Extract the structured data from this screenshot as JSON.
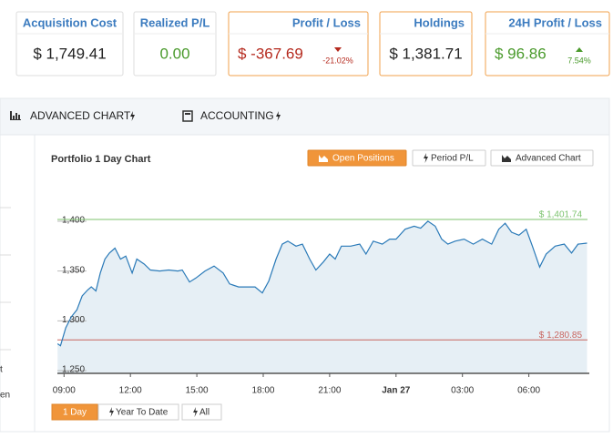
{
  "cards": [
    {
      "label": "Acquisition Cost",
      "value": "$ 1,749.41"
    },
    {
      "label": "Realized P/L",
      "value": "0.00"
    },
    {
      "label": "Profit / Loss",
      "value": "$ -367.69",
      "change": "-21.02%"
    },
    {
      "label": "Holdings",
      "value": "$ 1,381.71"
    },
    {
      "label": "24H Profit / Loss",
      "value": "$ 96.86",
      "change": "7.54%"
    }
  ],
  "tabs": [
    "ADVANCED CHART",
    "ACCOUNTING"
  ],
  "sidebar": [
    "t",
    "en"
  ],
  "chart_buttons": [
    "Open Positions",
    "Period P/L",
    "Advanced Chart"
  ],
  "range_buttons": [
    "1 Day",
    "Year To Date",
    "All"
  ],
  "chart_data": {
    "type": "area",
    "title": "Portfolio 1 Day Chart",
    "color": "#2a7ab8",
    "fill": "#e6eff5",
    "x": [
      8.71,
      8.84,
      9.08,
      9.33,
      9.58,
      9.82,
      10.07,
      10.23,
      10.44,
      10.64,
      10.85,
      11.05,
      11.3,
      11.55,
      11.79,
      12.08,
      12.29,
      12.62,
      12.9,
      13.32,
      13.73,
      14.14,
      14.34,
      14.67,
      14.96,
      15.37,
      15.78,
      16.19,
      16.48,
      16.89,
      17.3,
      17.63,
      17.96,
      18.25,
      18.58,
      18.86,
      19.11,
      19.48,
      19.77,
      20.1,
      20.38,
      20.71,
      21.0,
      21.25,
      21.53,
      21.95,
      22.36,
      22.64,
      22.97,
      23.38,
      23.71,
      24.0,
      24.41,
      24.82,
      25.11,
      25.44,
      25.77,
      26.06,
      26.34,
      26.67,
      27.08,
      27.49,
      27.9,
      28.32,
      28.64,
      28.93,
      29.22,
      29.55,
      29.88,
      30.16,
      30.49,
      30.78,
      31.19,
      31.6,
      31.93,
      32.22,
      32.63
    ],
    "values": [
      1277,
      1275,
      1293,
      1304,
      1311,
      1325,
      1331,
      1334,
      1330,
      1348,
      1362,
      1368,
      1373,
      1362,
      1365,
      1348,
      1362,
      1357,
      1351,
      1350,
      1351,
      1350,
      1351,
      1339,
      1343,
      1350,
      1355,
      1348,
      1337,
      1334,
      1334,
      1334,
      1328,
      1340,
      1362,
      1377,
      1380,
      1375,
      1377,
      1362,
      1351,
      1359,
      1367,
      1362,
      1375,
      1375,
      1377,
      1367,
      1380,
      1377,
      1382,
      1382,
      1392,
      1395,
      1393,
      1400,
      1395,
      1382,
      1377,
      1380,
      1382,
      1377,
      1382,
      1377,
      1392,
      1398,
      1389,
      1386,
      1392,
      1375,
      1354,
      1367,
      1375,
      1377,
      1368,
      1377,
      1378
    ],
    "xlim": [
      8.7,
      32.65
    ],
    "ylim": [
      1250,
      1410
    ],
    "xticks": [
      {
        "value": 9,
        "label": "09:00"
      },
      {
        "value": 12,
        "label": "12:00"
      },
      {
        "value": 15,
        "label": "15:00"
      },
      {
        "value": 18,
        "label": "18:00"
      },
      {
        "value": 21,
        "label": "21:00"
      },
      {
        "value": 24,
        "label": "Jan 27"
      },
      {
        "value": 27,
        "label": "03:00"
      },
      {
        "value": 30,
        "label": "06:00"
      }
    ],
    "yticks": [
      {
        "value": 1250,
        "label": "1,250"
      },
      {
        "value": 1300,
        "label": "1,300"
      },
      {
        "value": 1350,
        "label": "1,350"
      },
      {
        "value": 1400,
        "label": "1,400"
      }
    ],
    "reference_lines": [
      {
        "value": 1401.74,
        "label": "$ 1,401.74",
        "color": "#7cc36e"
      },
      {
        "value": 1280.85,
        "label": "$ 1,280.85",
        "color": "#c9655f"
      }
    ]
  }
}
